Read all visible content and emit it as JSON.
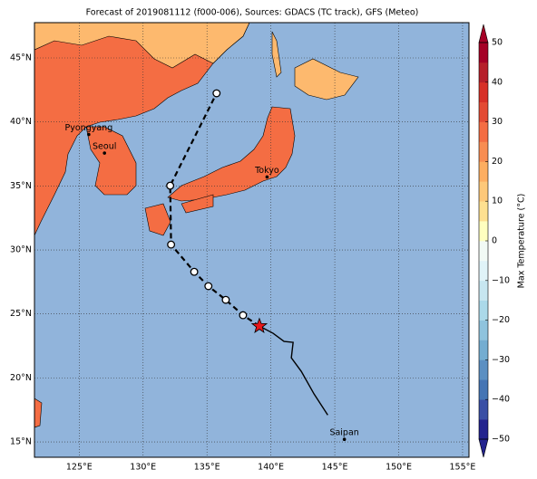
{
  "map": {
    "title": "Forecast of 2019081112 (f000-006), Sources: GDACS (TC track), GFS (Meteo)",
    "lonlim": [
      121.5,
      155.5
    ],
    "latlim": [
      13.8,
      47.76
    ],
    "lonticks": [
      {
        "value": 125,
        "label": "125°E"
      },
      {
        "value": 130,
        "label": "130°E"
      },
      {
        "value": 135,
        "label": "135°E"
      },
      {
        "value": 140,
        "label": "140°E"
      },
      {
        "value": 145,
        "label": "145°E"
      },
      {
        "value": 150,
        "label": "150°E"
      },
      {
        "value": 155,
        "label": "155°E"
      }
    ],
    "latticks": [
      {
        "value": 15,
        "label": "15°N"
      },
      {
        "value": 20,
        "label": "20°N"
      },
      {
        "value": 25,
        "label": "25°N"
      },
      {
        "value": 30,
        "label": "30°N"
      },
      {
        "value": 35,
        "label": "35°N"
      },
      {
        "value": 40,
        "label": "40°N"
      },
      {
        "value": 45,
        "label": "45°N"
      }
    ],
    "cities": [
      {
        "name": "Pyongyang",
        "lon": 125.75,
        "lat": 39.02
      },
      {
        "name": "Seoul",
        "lon": 126.98,
        "lat": 37.57
      },
      {
        "name": "Tokyo",
        "lon": 139.7,
        "lat": 35.7
      },
      {
        "name": "Saipan",
        "lon": 145.75,
        "lat": 15.2
      }
    ],
    "observed_track": {
      "lon": [
        144.45,
        143.38,
        142.38,
        141.6,
        141.74,
        141.03,
        140.17,
        139.1
      ],
      "lat": [
        17.1,
        18.74,
        20.51,
        21.57,
        22.78,
        22.85,
        23.49,
        24.05
      ]
    },
    "forecast_track": {
      "lon": [
        139.1,
        137.82,
        136.47,
        135.11,
        134.0,
        132.19,
        132.12,
        135.75
      ],
      "lat": [
        24.05,
        24.9,
        26.1,
        27.17,
        28.29,
        30.42,
        35.02,
        42.24
      ]
    }
  },
  "colorbar": {
    "label": "Max Temperature (°C)",
    "lim": [
      -50,
      50
    ],
    "ticks": [
      {
        "value": -50,
        "label": "−50"
      },
      {
        "value": -40,
        "label": "−40"
      },
      {
        "value": -30,
        "label": "−30"
      },
      {
        "value": -20,
        "label": "−20"
      },
      {
        "value": -10,
        "label": "−10"
      },
      0,
      10,
      20,
      30,
      40,
      50
    ],
    "colors": [
      "#23238e",
      "#3a4fa5",
      "#4575b4",
      "#5b8fc2",
      "#74add1",
      "#8fc3dd",
      "#abd9e9",
      "#c7e6f0",
      "#e0f3f8",
      "#f2faf5",
      "#ffffbf",
      "#fee090",
      "#fdc879",
      "#fdae61",
      "#f88d52",
      "#f46d43",
      "#e34a33",
      "#d73027",
      "#b61f2a",
      "#a50026"
    ]
  }
}
